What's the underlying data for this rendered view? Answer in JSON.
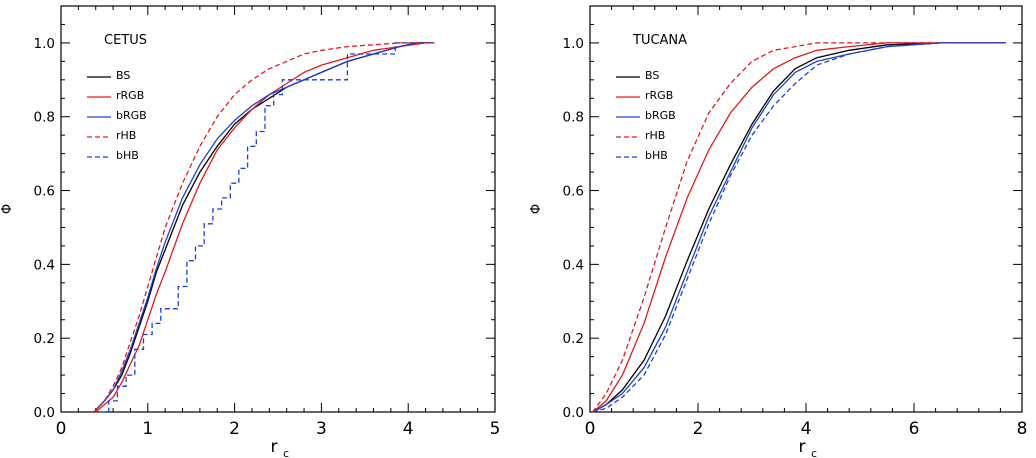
{
  "chart_data": [
    {
      "type": "line",
      "title": "CETUS",
      "xlabel": "r",
      "xlabel_sub": "c",
      "ylabel": "Φ",
      "xlim": [
        0,
        5
      ],
      "ylim": [
        0,
        1.1
      ],
      "xticks": [
        0,
        1,
        2,
        3,
        4,
        5
      ],
      "xtick_labels": [
        "0",
        "1",
        "2",
        "3",
        "4",
        "5"
      ],
      "yticks": [
        0,
        0.2,
        0.4,
        0.6,
        0.8,
        1.0
      ],
      "ytick_labels": [
        "0.0",
        "0.2",
        "0.4",
        "0.6",
        "0.8",
        "1.0"
      ],
      "legend_position": "top-left",
      "series": [
        {
          "name": "BS",
          "color": "#000000",
          "dash": "solid",
          "x": [
            0.38,
            0.5,
            0.6,
            0.7,
            0.8,
            0.9,
            1.0,
            1.1,
            1.2,
            1.4,
            1.6,
            1.8,
            2.0,
            2.2,
            2.4,
            2.6,
            2.8,
            3.0,
            3.3,
            3.6,
            3.9,
            4.1,
            4.3
          ],
          "y": [
            0.0,
            0.03,
            0.06,
            0.1,
            0.16,
            0.23,
            0.3,
            0.38,
            0.44,
            0.56,
            0.65,
            0.72,
            0.78,
            0.82,
            0.85,
            0.88,
            0.9,
            0.92,
            0.95,
            0.97,
            0.99,
            1.0,
            1.0
          ]
        },
        {
          "name": "rRGB",
          "color": "#e31a1c",
          "dash": "solid",
          "x": [
            0.4,
            0.5,
            0.6,
            0.7,
            0.8,
            0.9,
            1.0,
            1.1,
            1.2,
            1.4,
            1.6,
            1.8,
            2.0,
            2.2,
            2.4,
            2.6,
            2.8,
            3.0,
            3.3,
            3.6,
            3.9,
            4.2,
            4.3
          ],
          "y": [
            0.0,
            0.02,
            0.04,
            0.08,
            0.13,
            0.18,
            0.25,
            0.32,
            0.38,
            0.51,
            0.62,
            0.71,
            0.77,
            0.82,
            0.86,
            0.89,
            0.92,
            0.94,
            0.96,
            0.98,
            0.99,
            1.0,
            1.0
          ]
        },
        {
          "name": "bRGB",
          "color": "#1f3fd0",
          "dash": "solid",
          "x": [
            0.38,
            0.5,
            0.6,
            0.7,
            0.8,
            0.9,
            1.0,
            1.1,
            1.2,
            1.4,
            1.6,
            1.8,
            2.0,
            2.2,
            2.4,
            2.6,
            2.8,
            3.0,
            3.3,
            3.6,
            3.9,
            4.1,
            4.3
          ],
          "y": [
            0.0,
            0.03,
            0.06,
            0.11,
            0.17,
            0.24,
            0.31,
            0.39,
            0.46,
            0.58,
            0.67,
            0.74,
            0.79,
            0.83,
            0.86,
            0.88,
            0.9,
            0.92,
            0.95,
            0.97,
            0.99,
            1.0,
            1.0
          ]
        },
        {
          "name": "rHB",
          "color": "#e31a1c",
          "dash": "dashed",
          "x": [
            0.38,
            0.5,
            0.6,
            0.7,
            0.8,
            0.9,
            1.0,
            1.1,
            1.2,
            1.4,
            1.6,
            1.8,
            2.0,
            2.2,
            2.4,
            2.6,
            2.8,
            3.0,
            3.3,
            3.6,
            3.9,
            4.1,
            4.3
          ],
          "y": [
            0.0,
            0.03,
            0.07,
            0.12,
            0.19,
            0.26,
            0.34,
            0.42,
            0.5,
            0.62,
            0.72,
            0.8,
            0.86,
            0.9,
            0.93,
            0.95,
            0.97,
            0.98,
            0.99,
            0.995,
            1.0,
            1.0,
            1.0
          ]
        },
        {
          "name": "bHB",
          "color": "#1f3fd0",
          "dash": "dashed",
          "step": true,
          "x": [
            0.45,
            0.55,
            0.65,
            0.75,
            0.85,
            0.95,
            1.05,
            1.15,
            1.35,
            1.45,
            1.55,
            1.65,
            1.75,
            1.85,
            1.95,
            2.05,
            2.15,
            2.25,
            2.35,
            2.45,
            2.55,
            2.75,
            2.95,
            3.3,
            3.55,
            3.85,
            4.3
          ],
          "y": [
            0.0,
            0.03,
            0.07,
            0.1,
            0.17,
            0.21,
            0.24,
            0.28,
            0.34,
            0.41,
            0.45,
            0.51,
            0.55,
            0.58,
            0.62,
            0.66,
            0.72,
            0.76,
            0.83,
            0.86,
            0.9,
            0.9,
            0.9,
            0.97,
            0.97,
            1.0,
            1.0
          ]
        }
      ]
    },
    {
      "type": "line",
      "title": "TUCANA",
      "xlabel": "r",
      "xlabel_sub": "c",
      "ylabel": "Φ",
      "xlim": [
        0,
        8
      ],
      "ylim": [
        0,
        1.1
      ],
      "xticks": [
        0,
        2,
        4,
        6,
        8
      ],
      "xtick_labels": [
        "0",
        "2",
        "4",
        "6",
        "8"
      ],
      "yticks": [
        0,
        0.2,
        0.4,
        0.6,
        0.8,
        1.0
      ],
      "ytick_labels": [
        "0.0",
        "0.2",
        "0.4",
        "0.6",
        "0.8",
        "1.0"
      ],
      "legend_position": "top-left",
      "series": [
        {
          "name": "BS",
          "color": "#000000",
          "dash": "solid",
          "x": [
            0.05,
            0.3,
            0.6,
            1.0,
            1.4,
            1.8,
            2.2,
            2.6,
            3.0,
            3.4,
            3.8,
            4.2,
            4.8,
            5.5,
            6.5,
            7.7
          ],
          "y": [
            0.0,
            0.02,
            0.06,
            0.14,
            0.26,
            0.41,
            0.55,
            0.67,
            0.78,
            0.87,
            0.93,
            0.96,
            0.98,
            0.995,
            1.0,
            1.0
          ]
        },
        {
          "name": "rRGB",
          "color": "#e31a1c",
          "dash": "solid",
          "x": [
            0.05,
            0.3,
            0.6,
            1.0,
            1.4,
            1.8,
            2.2,
            2.6,
            3.0,
            3.4,
            3.8,
            4.2,
            4.8,
            5.5,
            6.5,
            7.7
          ],
          "y": [
            0.0,
            0.03,
            0.1,
            0.24,
            0.42,
            0.58,
            0.71,
            0.81,
            0.88,
            0.93,
            0.96,
            0.98,
            0.99,
            1.0,
            1.0,
            1.0
          ]
        },
        {
          "name": "bRGB",
          "color": "#1f3fd0",
          "dash": "solid",
          "x": [
            0.05,
            0.3,
            0.6,
            1.0,
            1.4,
            1.8,
            2.2,
            2.6,
            3.0,
            3.4,
            3.8,
            4.2,
            4.8,
            5.5,
            6.5,
            7.7
          ],
          "y": [
            0.0,
            0.02,
            0.05,
            0.12,
            0.23,
            0.38,
            0.53,
            0.65,
            0.77,
            0.86,
            0.92,
            0.95,
            0.97,
            0.99,
            1.0,
            1.0
          ]
        },
        {
          "name": "rHB",
          "color": "#e31a1c",
          "dash": "dashed",
          "x": [
            0.05,
            0.3,
            0.6,
            1.0,
            1.4,
            1.8,
            2.2,
            2.6,
            3.0,
            3.4,
            3.8,
            4.2,
            4.8,
            5.5,
            6.5,
            7.7
          ],
          "y": [
            0.0,
            0.05,
            0.14,
            0.31,
            0.5,
            0.68,
            0.81,
            0.89,
            0.95,
            0.98,
            0.99,
            1.0,
            1.0,
            1.0,
            1.0,
            1.0
          ]
        },
        {
          "name": "bHB",
          "color": "#1f3fd0",
          "dash": "dashed",
          "x": [
            0.05,
            0.3,
            0.6,
            1.0,
            1.4,
            1.8,
            2.2,
            2.6,
            3.0,
            3.4,
            3.8,
            4.2,
            4.8,
            5.5,
            6.5,
            7.7
          ],
          "y": [
            0.0,
            0.01,
            0.04,
            0.1,
            0.21,
            0.36,
            0.51,
            0.64,
            0.75,
            0.83,
            0.89,
            0.94,
            0.97,
            0.99,
            1.0,
            1.0
          ]
        }
      ]
    }
  ]
}
